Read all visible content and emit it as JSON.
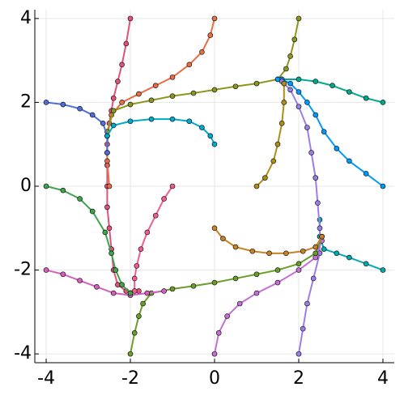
{
  "chart_data": {
    "type": "line",
    "markers": true,
    "grid": true,
    "xlim": [
      -4.27,
      4.27
    ],
    "ylim": [
      -4.21,
      4.21
    ],
    "xticks": [
      -4,
      -2,
      0,
      2,
      4
    ],
    "yticks": [
      -4,
      -2,
      0,
      2,
      4
    ],
    "series": [
      {
        "color": "#e0527a",
        "x": [
          -2,
          -2.1,
          -2.2,
          -2.3,
          -2.4,
          -2.45,
          -2.5,
          -2.55,
          -2.55,
          -2.55,
          -2.55,
          -2.5,
          -2.45,
          -2.4,
          -2.3,
          -2.1,
          -1.8
        ],
        "values": [
          4,
          3.4,
          2.9,
          2.5,
          2.1,
          1.8,
          1.5,
          1.0,
          0.5,
          0,
          -0.5,
          -1.0,
          -1.5,
          -2.0,
          -2.35,
          -2.5,
          -2.5
        ]
      },
      {
        "color": "#e36f47",
        "x": [
          0,
          -0.1,
          -0.3,
          -0.6,
          -1.0,
          -1.4,
          -1.8,
          -2.2,
          -2.45,
          -2.55,
          -2.55,
          -2.5
        ],
        "values": [
          4,
          3.6,
          3.2,
          2.9,
          2.6,
          2.4,
          2.2,
          2.0,
          1.7,
          1.2,
          0.6,
          0
        ]
      },
      {
        "color": "#8e971d",
        "x": [
          2,
          1.9,
          1.8,
          1.7,
          1.5,
          1.0,
          0.5,
          0,
          -0.5,
          -1.0,
          -1.5,
          -2.0,
          -2.4,
          -2.55,
          -2.55
        ],
        "values": [
          4,
          3.5,
          3.1,
          2.8,
          2.55,
          2.45,
          2.38,
          2.3,
          2.22,
          2.15,
          2.05,
          1.95,
          1.8,
          1.3,
          0.8
        ]
      },
      {
        "color": "#00a98d",
        "x": [
          4,
          3.6,
          3.2,
          2.8,
          2.4,
          2.0,
          1.6
        ],
        "values": [
          2,
          2.1,
          2.25,
          2.4,
          2.5,
          2.55,
          2.55
        ]
      },
      {
        "color": "#009afa",
        "x": [
          4,
          3.6,
          3.2,
          2.9,
          2.6,
          2.4,
          2.2,
          2.0,
          1.8,
          1.6,
          1.5
        ],
        "values": [
          0,
          0.3,
          0.6,
          0.9,
          1.3,
          1.7,
          2.0,
          2.25,
          2.45,
          2.55,
          2.55
        ]
      },
      {
        "color": "#00aaae",
        "x": [
          4,
          3.6,
          3.2,
          2.9,
          2.6,
          2.5,
          2.5
        ],
        "values": [
          -2,
          -1.85,
          -1.7,
          -1.6,
          -1.5,
          -1.2,
          -0.8
        ]
      },
      {
        "color": "#9b7fe9",
        "x": [
          2,
          2.1,
          2.2,
          2.35,
          2.5,
          2.5,
          2.45,
          2.4,
          2.3,
          2.2,
          2.0,
          1.8,
          1.6
        ],
        "values": [
          -4,
          -3.4,
          -2.8,
          -2.2,
          -1.6,
          -1.0,
          -0.4,
          0.2,
          0.8,
          1.4,
          1.9,
          2.3,
          2.5
        ]
      },
      {
        "color": "#c271d2",
        "x": [
          0,
          0.1,
          0.3,
          0.6,
          1.0,
          1.5,
          2.0,
          2.4,
          2.55
        ],
        "values": [
          -4,
          -3.5,
          -3.1,
          -2.8,
          -2.55,
          -2.3,
          -2.0,
          -1.7,
          -1.3
        ]
      },
      {
        "color": "#6a9e2a",
        "x": [
          -2,
          -1.9,
          -1.8,
          -1.7,
          -1.5,
          -1.0,
          -0.5,
          0,
          0.5,
          1.0,
          1.5,
          2.0,
          2.4,
          2.55
        ],
        "values": [
          -4,
          -3.5,
          -3.1,
          -2.8,
          -2.55,
          -2.45,
          -2.38,
          -2.3,
          -2.2,
          -2.1,
          -2.0,
          -1.85,
          -1.6,
          -1.2
        ]
      },
      {
        "color": "#d55fbd",
        "x": [
          -4,
          -3.6,
          -3.2,
          -2.8,
          -2.4,
          -2.0,
          -1.6,
          -1.2
        ],
        "values": [
          -2,
          -2.1,
          -2.25,
          -2.4,
          -2.55,
          -2.6,
          -2.55,
          -2.5
        ]
      },
      {
        "color": "#3ea44e",
        "x": [
          -4,
          -3.6,
          -3.2,
          -2.9,
          -2.6,
          -2.45,
          -2.35,
          -2.2,
          -2.0
        ],
        "values": [
          0,
          -0.1,
          -0.3,
          -0.6,
          -1.1,
          -1.6,
          -2.0,
          -2.35,
          -2.55
        ]
      },
      {
        "color": "#4f6fd8",
        "x": [
          -4,
          -3.6,
          -3.2,
          -2.9,
          -2.65,
          -2.55,
          -2.55
        ],
        "values": [
          2,
          1.95,
          1.85,
          1.7,
          1.5,
          1.2,
          0.8
        ]
      },
      {
        "color": "#00a9cd",
        "x": [
          0,
          -0.1,
          -0.3,
          -0.6,
          -1.0,
          -1.5,
          -2.0,
          -2.4,
          -2.55
        ],
        "values": [
          1,
          1.2,
          1.4,
          1.55,
          1.6,
          1.6,
          1.55,
          1.45,
          1.2
        ]
      },
      {
        "color": "#ed5e93",
        "x": [
          -1,
          -1.2,
          -1.4,
          -1.6,
          -1.75,
          -1.85,
          -1.9,
          -1.9
        ],
        "values": [
          0,
          -0.3,
          -0.7,
          -1.1,
          -1.5,
          -1.9,
          -2.2,
          -2.5
        ]
      },
      {
        "color": "#c68225",
        "x": [
          0,
          0.2,
          0.5,
          0.9,
          1.3,
          1.7,
          2.1,
          2.4,
          2.55
        ],
        "values": [
          -1,
          -1.25,
          -1.45,
          -1.55,
          -1.6,
          -1.6,
          -1.55,
          -1.45,
          -1.2
        ]
      },
      {
        "color": "#ac8e18",
        "x": [
          1,
          1.2,
          1.4,
          1.5,
          1.6,
          1.65,
          1.65
        ],
        "values": [
          0,
          0.2,
          0.6,
          1.0,
          1.5,
          2.0,
          2.45
        ]
      }
    ]
  }
}
